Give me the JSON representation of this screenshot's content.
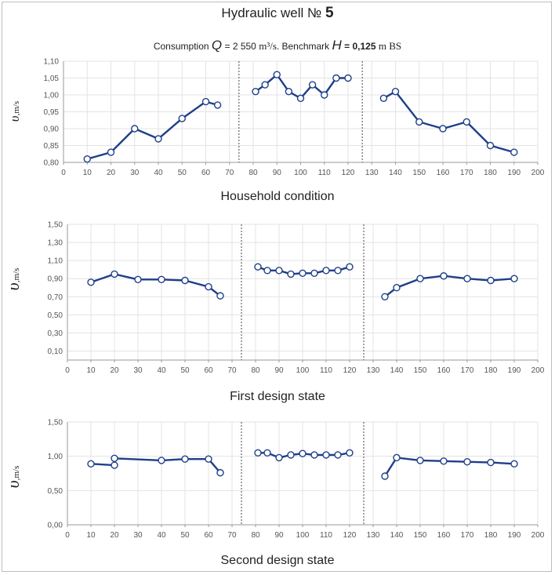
{
  "title": {
    "text": "Hydraulic well №",
    "number": "5"
  },
  "subtitle": {
    "consumption_label": "Consumption",
    "q_symbol": "Q",
    "q_value": "= 2 550",
    "q_unit": "m³/s.",
    "benchmark_label": "Benchmark",
    "h_symbol": "H",
    "h_value": "= 0,125",
    "h_unit": "m BS"
  },
  "chart_data": [
    {
      "type": "line",
      "caption": "Household condition",
      "ylabel": "υ,m/s",
      "xlim": [
        0,
        200
      ],
      "ylim": [
        0.8,
        1.1
      ],
      "yticks": [
        "0,80",
        "0,85",
        "0,90",
        "0,95",
        "1,00",
        "1,05",
        "1,10"
      ],
      "xticks": [
        "0",
        "10",
        "20",
        "30",
        "40",
        "50",
        "60",
        "70",
        "80",
        "90",
        "100",
        "110",
        "120",
        "130",
        "140",
        "150",
        "160",
        "170",
        "180",
        "190",
        "200"
      ],
      "dividers": [
        74,
        126
      ],
      "grid": true,
      "segments": [
        {
          "x": [
            10,
            20,
            30,
            40,
            50,
            60,
            65
          ],
          "y": [
            0.81,
            0.83,
            0.9,
            0.87,
            0.93,
            0.98,
            0.97
          ]
        },
        {
          "x": [
            81,
            85,
            90,
            95,
            100,
            105,
            110,
            115,
            120
          ],
          "y": [
            1.01,
            1.03,
            1.06,
            1.01,
            0.99,
            1.03,
            1.0,
            1.05,
            1.05
          ]
        },
        {
          "x": [
            135,
            140,
            150,
            160,
            170,
            180,
            190
          ],
          "y": [
            0.99,
            1.01,
            0.92,
            0.9,
            0.92,
            0.85,
            0.83
          ]
        }
      ]
    },
    {
      "type": "line",
      "caption": "First design state",
      "ylabel": "υ,m/s",
      "xlim": [
        0,
        200
      ],
      "ylim": [
        0.0,
        1.5
      ],
      "yticks": [
        "0,10",
        "0,30",
        "0,50",
        "0,70",
        "0,90",
        "1,10",
        "1,30",
        "1,50"
      ],
      "xticks": [
        "0",
        "10",
        "20",
        "30",
        "40",
        "50",
        "60",
        "70",
        "80",
        "90",
        "100",
        "110",
        "120",
        "130",
        "140",
        "150",
        "160",
        "170",
        "180",
        "190",
        "200"
      ],
      "dividers": [
        74,
        126
      ],
      "grid": true,
      "segments": [
        {
          "x": [
            10,
            20,
            30,
            40,
            50,
            60,
            65
          ],
          "y": [
            0.86,
            0.95,
            0.89,
            0.89,
            0.88,
            0.81,
            0.71
          ]
        },
        {
          "x": [
            81,
            85,
            90,
            95,
            100,
            105,
            110,
            115,
            120
          ],
          "y": [
            1.03,
            0.99,
            0.99,
            0.95,
            0.96,
            0.96,
            0.99,
            0.99,
            1.03
          ]
        },
        {
          "x": [
            135,
            140,
            150,
            160,
            170,
            180,
            190
          ],
          "y": [
            0.7,
            0.8,
            0.9,
            0.93,
            0.9,
            0.88,
            0.9
          ]
        }
      ]
    },
    {
      "type": "line",
      "caption": "Second design state",
      "ylabel": "υ,m/s",
      "xlim": [
        0,
        200
      ],
      "ylim": [
        0.0,
        1.5
      ],
      "yticks": [
        "0,00",
        "0,50",
        "1,00",
        "1,50"
      ],
      "xticks": [
        "0",
        "10",
        "20",
        "30",
        "40",
        "50",
        "60",
        "70",
        "80",
        "90",
        "100",
        "110",
        "120",
        "130",
        "140",
        "150",
        "160",
        "170",
        "180",
        "190",
        "200"
      ],
      "dividers": [
        74,
        126
      ],
      "grid": true,
      "segments": [
        {
          "x": [
            10,
            20,
            20,
            40,
            50,
            60,
            65
          ],
          "y": [
            0.89,
            0.87,
            0.97,
            0.94,
            0.96,
            0.96,
            0.76
          ]
        },
        {
          "x": [
            81,
            85,
            90,
            95,
            100,
            105,
            110,
            115,
            120
          ],
          "y": [
            1.05,
            1.05,
            0.98,
            1.02,
            1.04,
            1.02,
            1.02,
            1.02,
            1.05
          ]
        },
        {
          "x": [
            135,
            140,
            150,
            160,
            170,
            180,
            190
          ],
          "y": [
            0.71,
            0.98,
            0.94,
            0.93,
            0.92,
            0.91,
            0.89
          ]
        }
      ]
    }
  ]
}
